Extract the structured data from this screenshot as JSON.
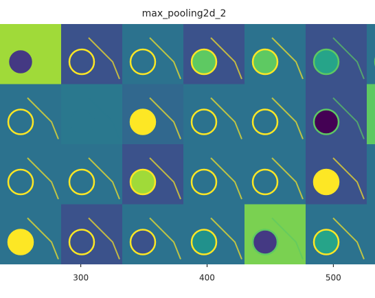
{
  "chart_data": {
    "type": "image",
    "title": "max_pooling2d_2",
    "xlim": [
      236,
      533
    ],
    "xticks": [
      300,
      400,
      500
    ]
  }
}
